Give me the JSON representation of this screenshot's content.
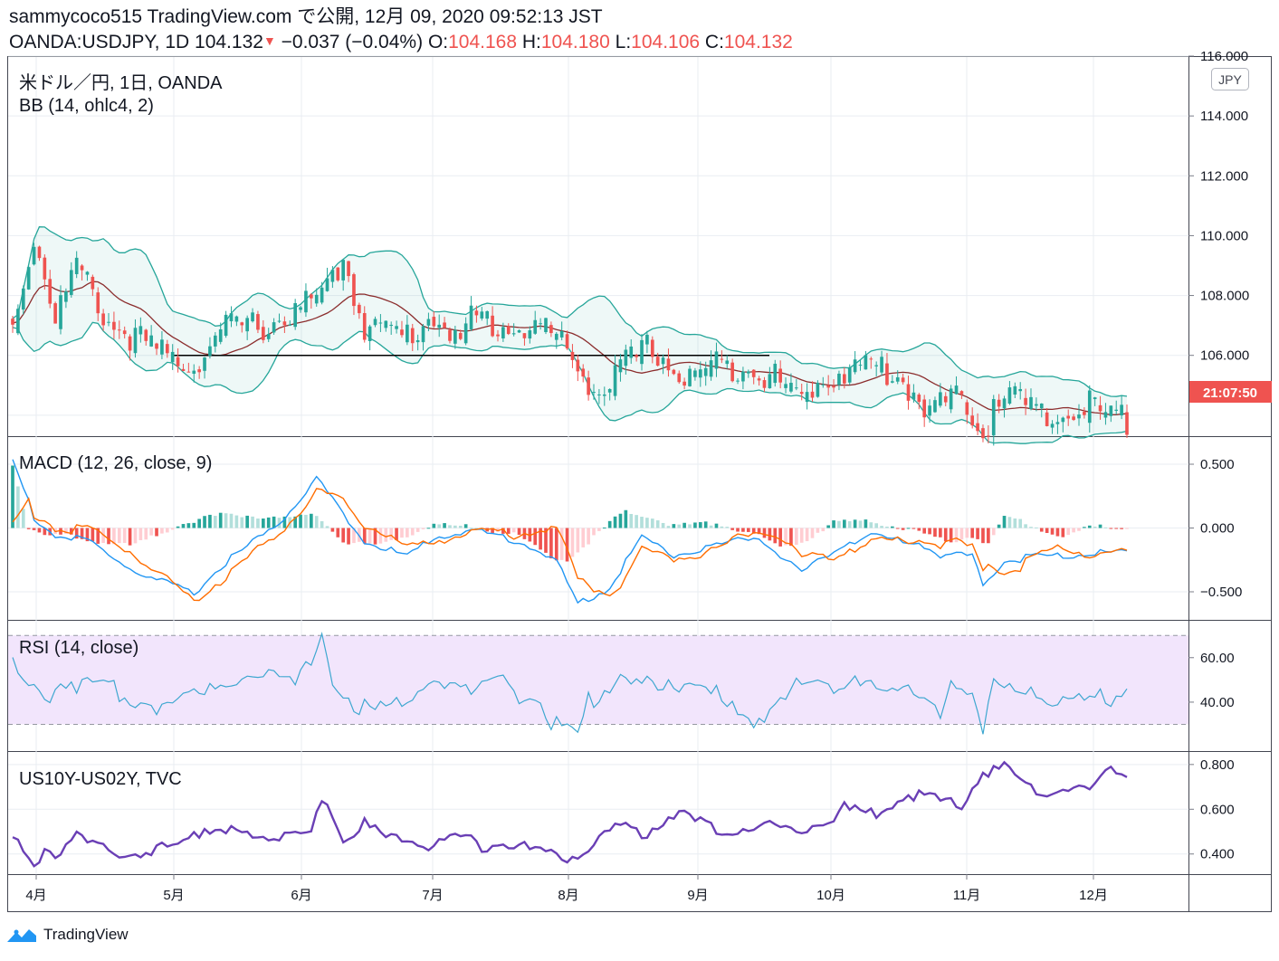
{
  "header": {
    "line1": "sammycoco515 TradingView.com で公開, 12月 09, 2020 09:52:13 JST",
    "symbol": "OANDA:USDJPY, 1D",
    "last": "104.132",
    "change": "−0.037 (−0.04%)",
    "o_label": "O:",
    "o_value": "104.168",
    "h_label": "H:",
    "h_value": "104.180",
    "l_label": "L:",
    "l_value": "104.106",
    "c_label": "C:",
    "c_value": "104.132"
  },
  "panes": {
    "main": {
      "title": "米ドル／円, 1日, OANDA",
      "indicator": "BB (14, ohlc4, 2)",
      "currency_badge": "JPY",
      "countdown": "21:07:50"
    },
    "macd": {
      "title": "MACD (12, 26, close, 9)"
    },
    "rsi": {
      "title": "RSI (14, close)"
    },
    "spread": {
      "title": "US10Y-US02Y, TVC"
    }
  },
  "footer": {
    "brand": "TradingView"
  },
  "colors": {
    "up": "#26a69a",
    "down": "#ef5350",
    "bb_band": "#26a69a",
    "bb_basis": "#8b2d2d",
    "macd_line": "#2196f3",
    "signal_line": "#ff6d00",
    "rsi_line": "#3ea7d0",
    "rsi_band": "#f2e5fc",
    "spread_line": "#6a3fb5",
    "grid": "#e9edf2",
    "price_tag": "#ef5350"
  },
  "chart_data": [
    {
      "type": "candlestick",
      "pane": "price",
      "y_ticks": [
        "116.000",
        "114.000",
        "112.000",
        "110.000",
        "108.000",
        "106.000"
      ],
      "ylim": [
        103.3,
        116.0
      ],
      "x_ticks": [
        "4月",
        "5月",
        "6月",
        "7月",
        "8月",
        "9月",
        "10月",
        "11月",
        "12月"
      ],
      "anchor_points": [
        [
          0,
          107.2
        ],
        [
          4,
          110.3
        ],
        [
          8,
          107.6
        ],
        [
          12,
          109.2
        ],
        [
          18,
          107.4
        ],
        [
          28,
          106.3
        ],
        [
          34,
          106.0
        ],
        [
          40,
          107.2
        ],
        [
          48,
          107.3
        ],
        [
          58,
          108.2
        ],
        [
          62,
          109.5
        ],
        [
          66,
          107.3
        ],
        [
          74,
          106.9
        ],
        [
          80,
          107.8
        ],
        [
          84,
          106.4
        ],
        [
          86,
          107.6
        ],
        [
          93,
          107.2
        ],
        [
          100,
          107.2
        ],
        [
          104,
          106.4
        ],
        [
          110,
          105.0
        ],
        [
          114,
          105.8
        ],
        [
          120,
          106.6
        ],
        [
          126,
          105.4
        ],
        [
          131,
          105.9
        ],
        [
          138,
          106.0
        ],
        [
          142,
          105.6
        ],
        [
          148,
          104.8
        ],
        [
          152,
          105.6
        ],
        [
          156,
          105.7
        ],
        [
          160,
          106.0
        ],
        [
          166,
          105.6
        ],
        [
          172,
          104.5
        ],
        [
          178,
          104.8
        ],
        [
          183,
          103.7
        ],
        [
          184,
          105.0
        ],
        [
          188,
          104.9
        ],
        [
          194,
          104.0
        ],
        [
          198,
          104.4
        ],
        [
          202,
          104.6
        ],
        [
          206,
          104.1
        ],
        [
          209,
          104.13
        ]
      ],
      "support_line": {
        "from": 106.0,
        "value": 106.0
      }
    },
    {
      "type": "macd",
      "pane": "macd",
      "y_ticks": [
        "0.500",
        "0.000",
        "−0.500"
      ],
      "ylim": [
        -0.72,
        0.72
      ],
      "anchor_points_macd": [
        [
          0,
          0.55
        ],
        [
          4,
          0.1
        ],
        [
          8,
          -0.05
        ],
        [
          14,
          -0.08
        ],
        [
          18,
          -0.2
        ],
        [
          24,
          -0.35
        ],
        [
          34,
          -0.5
        ],
        [
          40,
          -0.25
        ],
        [
          50,
          0.05
        ],
        [
          57,
          0.4
        ],
        [
          60,
          0.25
        ],
        [
          66,
          -0.1
        ],
        [
          74,
          -0.2
        ],
        [
          80,
          -0.05
        ],
        [
          86,
          0.0
        ],
        [
          96,
          -0.1
        ],
        [
          102,
          -0.25
        ],
        [
          106,
          -0.58
        ],
        [
          112,
          -0.45
        ],
        [
          118,
          -0.05
        ],
        [
          124,
          -0.2
        ],
        [
          134,
          -0.1
        ],
        [
          140,
          -0.05
        ],
        [
          144,
          -0.2
        ],
        [
          148,
          -0.35
        ],
        [
          156,
          -0.1
        ],
        [
          162,
          -0.05
        ],
        [
          170,
          -0.1
        ],
        [
          174,
          -0.2
        ],
        [
          180,
          -0.2
        ],
        [
          182,
          -0.42
        ],
        [
          186,
          -0.25
        ],
        [
          192,
          -0.2
        ],
        [
          198,
          -0.2
        ],
        [
          209,
          -0.17
        ]
      ],
      "histogram_anchor": [
        [
          0,
          0.5
        ],
        [
          3,
          0.02
        ],
        [
          6,
          -0.05
        ],
        [
          10,
          -0.05
        ],
        [
          16,
          -0.1
        ],
        [
          22,
          -0.13
        ],
        [
          27,
          -0.05
        ],
        [
          32,
          0.05
        ],
        [
          40,
          0.12
        ],
        [
          46,
          0.1
        ],
        [
          52,
          0.08
        ],
        [
          57,
          0.12
        ],
        [
          62,
          -0.1
        ],
        [
          68,
          -0.13
        ],
        [
          74,
          -0.05
        ],
        [
          79,
          0.04
        ],
        [
          86,
          0.02
        ],
        [
          95,
          -0.05
        ],
        [
          100,
          -0.2
        ],
        [
          104,
          -0.25
        ],
        [
          108,
          -0.1
        ],
        [
          112,
          0.05
        ],
        [
          115,
          0.15
        ],
        [
          119,
          0.1
        ],
        [
          124,
          0.03
        ],
        [
          132,
          0.05
        ],
        [
          140,
          -0.05
        ],
        [
          144,
          -0.15
        ],
        [
          148,
          -0.1
        ],
        [
          154,
          0.05
        ],
        [
          160,
          0.07
        ],
        [
          166,
          0.02
        ],
        [
          172,
          -0.05
        ],
        [
          176,
          -0.1
        ],
        [
          180,
          -0.05
        ],
        [
          183,
          -0.12
        ],
        [
          186,
          0.1
        ],
        [
          190,
          0.05
        ],
        [
          194,
          -0.02
        ],
        [
          198,
          -0.05
        ],
        [
          202,
          0.02
        ],
        [
          209,
          0.02
        ]
      ]
    },
    {
      "type": "line",
      "pane": "rsi",
      "y_ticks": [
        "60.00",
        "40.00"
      ],
      "ylim": [
        18,
        77
      ],
      "band": [
        30,
        70
      ],
      "anchor_points": [
        [
          0,
          62
        ],
        [
          2,
          48
        ],
        [
          6,
          45
        ],
        [
          10,
          53
        ],
        [
          14,
          49
        ],
        [
          18,
          48
        ],
        [
          24,
          44
        ],
        [
          28,
          40
        ],
        [
          34,
          46
        ],
        [
          38,
          53
        ],
        [
          42,
          52
        ],
        [
          50,
          55
        ],
        [
          53,
          55
        ],
        [
          58,
          70
        ],
        [
          60,
          48
        ],
        [
          64,
          38
        ],
        [
          66,
          44
        ],
        [
          72,
          42
        ],
        [
          74,
          38
        ],
        [
          76,
          46
        ],
        [
          80,
          54
        ],
        [
          84,
          52
        ],
        [
          88,
          47
        ],
        [
          92,
          50
        ],
        [
          96,
          45
        ],
        [
          98,
          48
        ],
        [
          100,
          37
        ],
        [
          104,
          29
        ],
        [
          106,
          26
        ],
        [
          108,
          43
        ],
        [
          114,
          55
        ],
        [
          118,
          50
        ],
        [
          122,
          47
        ],
        [
          126,
          52
        ],
        [
          130,
          52
        ],
        [
          134,
          40
        ],
        [
          138,
          32
        ],
        [
          142,
          40
        ],
        [
          146,
          50
        ],
        [
          152,
          48
        ],
        [
          156,
          50
        ],
        [
          158,
          56
        ],
        [
          162,
          48
        ],
        [
          166,
          45
        ],
        [
          170,
          48
        ],
        [
          174,
          40
        ],
        [
          176,
          48
        ],
        [
          180,
          42
        ],
        [
          182,
          27
        ],
        [
          184,
          55
        ],
        [
          188,
          52
        ],
        [
          192,
          42
        ],
        [
          196,
          38
        ],
        [
          198,
          49
        ],
        [
          202,
          46
        ],
        [
          204,
          50
        ],
        [
          206,
          40
        ],
        [
          209,
          45
        ]
      ]
    },
    {
      "type": "line",
      "pane": "spread",
      "y_ticks": [
        "0.800",
        "0.600",
        "0.400"
      ],
      "ylim": [
        0.31,
        0.86
      ],
      "anchor_points": [
        [
          0,
          0.51
        ],
        [
          2,
          0.45
        ],
        [
          4,
          0.39
        ],
        [
          6,
          0.42
        ],
        [
          8,
          0.38
        ],
        [
          12,
          0.5
        ],
        [
          16,
          0.48
        ],
        [
          20,
          0.4
        ],
        [
          24,
          0.38
        ],
        [
          28,
          0.44
        ],
        [
          34,
          0.52
        ],
        [
          38,
          0.5
        ],
        [
          44,
          0.52
        ],
        [
          50,
          0.48
        ],
        [
          56,
          0.5
        ],
        [
          58,
          0.68
        ],
        [
          60,
          0.6
        ],
        [
          62,
          0.47
        ],
        [
          66,
          0.55
        ],
        [
          70,
          0.48
        ],
        [
          74,
          0.5
        ],
        [
          78,
          0.46
        ],
        [
          84,
          0.49
        ],
        [
          88,
          0.45
        ],
        [
          92,
          0.46
        ],
        [
          98,
          0.43
        ],
        [
          104,
          0.4
        ],
        [
          108,
          0.44
        ],
        [
          114,
          0.54
        ],
        [
          118,
          0.5
        ],
        [
          124,
          0.6
        ],
        [
          128,
          0.56
        ],
        [
          132,
          0.52
        ],
        [
          138,
          0.53
        ],
        [
          142,
          0.54
        ],
        [
          148,
          0.52
        ],
        [
          152,
          0.56
        ],
        [
          156,
          0.62
        ],
        [
          160,
          0.59
        ],
        [
          164,
          0.62
        ],
        [
          168,
          0.68
        ],
        [
          172,
          0.66
        ],
        [
          178,
          0.64
        ],
        [
          182,
          0.78
        ],
        [
          186,
          0.8
        ],
        [
          190,
          0.72
        ],
        [
          194,
          0.68
        ],
        [
          198,
          0.72
        ],
        [
          202,
          0.68
        ],
        [
          204,
          0.76
        ],
        [
          206,
          0.8
        ],
        [
          209,
          0.78
        ]
      ]
    }
  ]
}
